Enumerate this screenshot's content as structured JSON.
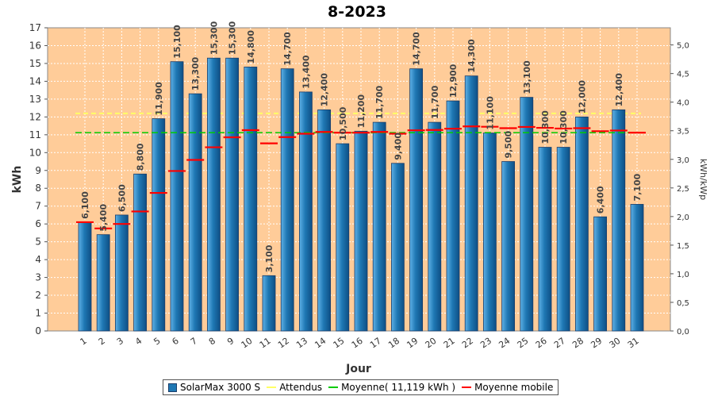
{
  "chart_data": {
    "type": "bar",
    "title": "8-2023",
    "xlabel": "Jour",
    "ylabel": "kWh",
    "y2label": "kWh/kWp",
    "ylim": [
      0,
      17
    ],
    "y2lim": [
      0,
      5.3
    ],
    "yticks": [
      "0",
      "1",
      "2",
      "3",
      "4",
      "5",
      "6",
      "7",
      "8",
      "9",
      "10",
      "11",
      "12",
      "13",
      "14",
      "15",
      "16",
      "17"
    ],
    "y2ticks": [
      "0,0",
      "0,5",
      "1,0",
      "1,5",
      "2,0",
      "2,5",
      "3,0",
      "3,5",
      "4,0",
      "4,5",
      "5,0"
    ],
    "categories": [
      "1",
      "2",
      "3",
      "4",
      "5",
      "6",
      "7",
      "8",
      "9",
      "10",
      "11",
      "12",
      "13",
      "14",
      "15",
      "16",
      "17",
      "18",
      "19",
      "20",
      "21",
      "22",
      "23",
      "24",
      "25",
      "26",
      "27",
      "28",
      "29",
      "30",
      "31"
    ],
    "series": [
      {
        "name": "SolarMax 3000 S",
        "values": [
          6.1,
          5.4,
          6.5,
          8.8,
          11.9,
          15.1,
          13.3,
          15.3,
          15.3,
          14.8,
          3.1,
          14.7,
          13.4,
          12.4,
          10.5,
          11.2,
          11.7,
          9.4,
          14.7,
          11.7,
          12.9,
          14.3,
          11.1,
          9.5,
          13.1,
          10.3,
          10.3,
          12.0,
          6.4,
          12.4,
          7.1
        ],
        "labels": [
          "6,100",
          "5,400",
          "6,500",
          "8,800",
          "11,900",
          "15,100",
          "13,300",
          "15,300",
          "15,300",
          "14,800",
          "3,100",
          "14,700",
          "13,400",
          "12,400",
          "10,500",
          "11,200",
          "11,700",
          "9,400",
          "14,700",
          "11,700",
          "12,900",
          "14,300",
          "11,100",
          "9,500",
          "13,100",
          "10,300",
          "10,300",
          "12,000",
          "6,400",
          "12,400",
          "7,100"
        ]
      },
      {
        "name": "Attendus",
        "value": 12.2
      },
      {
        "name": "Moyenne( 11,119 kWh )",
        "value": 11.119
      },
      {
        "name": "Moyenne mobile",
        "values": [
          6.1,
          5.75,
          6.0,
          6.7,
          7.74,
          8.97,
          9.59,
          10.3,
          10.86,
          11.26,
          10.52,
          10.87,
          11.06,
          11.16,
          11.12,
          11.12,
          11.16,
          11.06,
          11.25,
          11.27,
          11.34,
          11.47,
          11.45,
          11.37,
          11.44,
          11.39,
          11.35,
          11.37,
          11.2,
          11.24,
          11.12
        ]
      }
    ],
    "colors": {
      "bar": "#1f78b4",
      "bar_border": "#1a3d6a",
      "plot_bg": "#ffcc99",
      "attendus": "#ffff66",
      "moyenne": "#00cc00",
      "mobile": "#ff0000"
    },
    "grid": true,
    "legend_position": "bottom"
  }
}
